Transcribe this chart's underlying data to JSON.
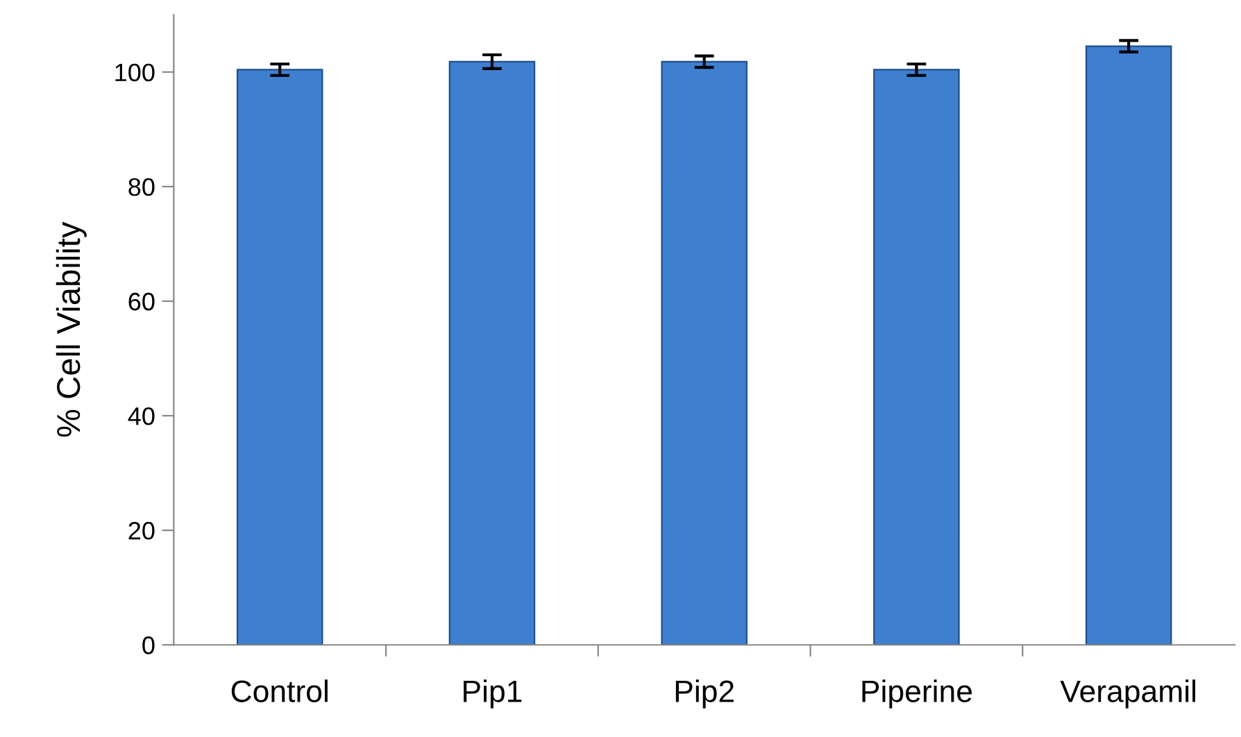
{
  "chart_data": {
    "type": "bar",
    "ylabel": "% Cell Viability",
    "categories": [
      "Control",
      "Pip1",
      "Pip2",
      "Piperine",
      "Verapamil"
    ],
    "values": [
      100.4,
      101.8,
      101.8,
      100.4,
      104.5
    ],
    "errors": [
      1.0,
      1.2,
      1.0,
      1.0,
      1.0
    ],
    "color": "#3f7fd0",
    "ylim": [
      0,
      110
    ],
    "yticks": [
      0,
      20,
      40,
      60,
      80,
      100
    ],
    "grid": false,
    "legend": false
  }
}
